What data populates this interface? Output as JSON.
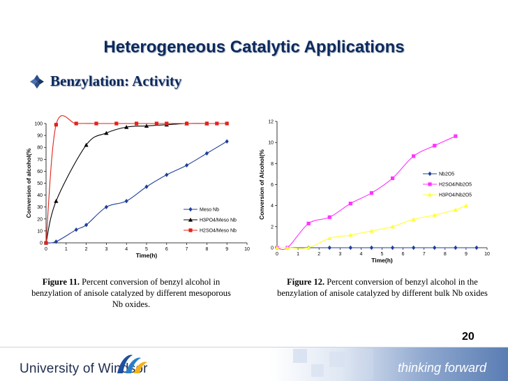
{
  "slide": {
    "title": "Heterogeneous Catalytic Applications",
    "bullet": "Benzylation: Activity",
    "page_number": "20",
    "footer": {
      "university": "University of Windsor",
      "tagline": "thinking forward"
    },
    "captions": {
      "fig11_label": "Figure 11.",
      "fig11_text": " Percent conversion of benzyl alcohol in benzylation of anisole catalyzed by different mesoporous Nb oxides.",
      "fig12_label": "Figure 12.",
      "fig12_text": " Percent conversion of benzyl alcohol in the benzylation of anisole catalyzed by different bulk Nb oxides"
    },
    "colors": {
      "title": "#0d2a5c",
      "series_blue": "#1f3f99",
      "series_black": "#000000",
      "series_red": "#e0231b",
      "series_magenta": "#ff33ff",
      "series_yellow": "#ffff33"
    }
  },
  "chart_data": [
    {
      "type": "line",
      "title": "",
      "xlabel": "Time(h)",
      "ylabel": "Conversion of alcohol(%",
      "xlim": [
        0,
        10
      ],
      "ylim": [
        0,
        100
      ],
      "xticks": [
        0,
        1,
        2,
        3,
        4,
        5,
        6,
        7,
        8,
        9,
        10
      ],
      "yticks": [
        0,
        10,
        20,
        30,
        40,
        50,
        60,
        70,
        80,
        90,
        100
      ],
      "legend": "right",
      "series": [
        {
          "name": "Meso Nb",
          "marker": "diamond",
          "color": "#1f3f99",
          "x": [
            0,
            0.5,
            1.5,
            2,
            3,
            4,
            5,
            6,
            7,
            8,
            9
          ],
          "y": [
            0,
            1,
            11,
            15,
            30,
            35,
            47,
            57,
            65,
            75,
            85
          ]
        },
        {
          "name": "H3PO4/Meso Nb",
          "marker": "triangle",
          "color": "#000000",
          "x": [
            0,
            0.5,
            2,
            3,
            4,
            5,
            6,
            7,
            8
          ],
          "y": [
            0,
            35,
            82,
            92,
            97,
            98,
            99,
            100,
            100
          ]
        },
        {
          "name": "H2SO4/Meso Nb",
          "marker": "square",
          "color": "#e0231b",
          "x": [
            0,
            0.5,
            1.5,
            2.5,
            3.5,
            4.5,
            5.5,
            6,
            7,
            8,
            8.5,
            9
          ],
          "y": [
            0,
            99,
            100,
            100,
            100,
            100,
            100,
            100,
            100,
            100,
            100,
            100
          ]
        }
      ]
    },
    {
      "type": "line",
      "title": "",
      "xlabel": "Time(h)",
      "ylabel": "Conversion of Alcohol(%",
      "xlim": [
        0,
        10
      ],
      "ylim": [
        0,
        12
      ],
      "xticks": [
        0,
        1,
        2,
        3,
        4,
        5,
        6,
        7,
        8,
        9,
        10
      ],
      "yticks": [
        0,
        2,
        4,
        6,
        8,
        10,
        12
      ],
      "legend": "right",
      "series": [
        {
          "name": "Nb2O5",
          "marker": "diamond",
          "color": "#1f3f99",
          "x": [
            0,
            0.5,
            1.5,
            2.5,
            3.5,
            4.5,
            5.5,
            6.5,
            7.5,
            8.5,
            9.5
          ],
          "y": [
            0,
            0,
            0,
            0,
            0,
            0,
            0,
            0,
            0,
            0,
            0
          ]
        },
        {
          "name": "H2SO4/Nb2O5",
          "marker": "square",
          "color": "#ff33ff",
          "x": [
            0,
            0.5,
            1.5,
            2.5,
            3.5,
            4.5,
            5.5,
            6.5,
            7.5,
            8.5
          ],
          "y": [
            0,
            0,
            2.3,
            2.9,
            4.2,
            5.2,
            6.6,
            8.7,
            9.7,
            10.6
          ]
        },
        {
          "name": "H3PO4/Nb2O5",
          "marker": "triangle",
          "color": "#ffff33",
          "x": [
            0,
            0.5,
            1.5,
            2.5,
            3.5,
            4.5,
            5.5,
            6.5,
            7.5,
            8.5,
            9
          ],
          "y": [
            0,
            0,
            0,
            0.9,
            1.2,
            1.6,
            2.0,
            2.7,
            3.1,
            3.6,
            4.0
          ]
        }
      ]
    }
  ]
}
